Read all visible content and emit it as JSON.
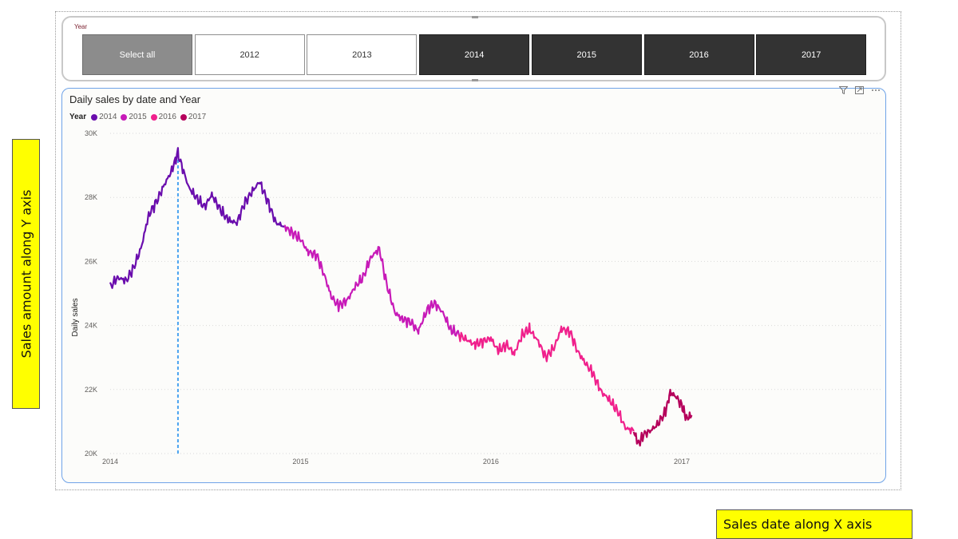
{
  "slicer": {
    "title": "Year",
    "buttons": [
      {
        "label": "Select all",
        "state": "all"
      },
      {
        "label": "2012",
        "state": "off"
      },
      {
        "label": "2013",
        "state": "off"
      },
      {
        "label": "2014",
        "state": "on"
      },
      {
        "label": "2015",
        "state": "on"
      },
      {
        "label": "2016",
        "state": "on"
      },
      {
        "label": "2017",
        "state": "on"
      }
    ]
  },
  "card_icons": [
    "filter-icon",
    "focus-mode-icon",
    "more-options-icon"
  ],
  "annotations": {
    "y_axis_note": "Sales amount along Y axis",
    "x_axis_note": "Sales date along X axis"
  },
  "chart_data": {
    "type": "line",
    "title": "Daily sales by date and Year",
    "xlabel": "",
    "ylabel": "Daily sales",
    "legend_title": "Year",
    "legend_position": "top-left",
    "x_domain": [
      "2014-01-01",
      "2017-05-01"
    ],
    "x_ticks": [
      {
        "date": "2014-01-01",
        "label": "2014"
      },
      {
        "date": "2015-01-01",
        "label": "2015"
      },
      {
        "date": "2016-01-01",
        "label": "2016"
      },
      {
        "date": "2017-01-01",
        "label": "2017"
      }
    ],
    "ylim": [
      20000,
      30000
    ],
    "y_ticks": [
      {
        "value": 20000,
        "label": "20K"
      },
      {
        "value": 22000,
        "label": "22K"
      },
      {
        "value": 24000,
        "label": "24K"
      },
      {
        "value": 26000,
        "label": "26K"
      },
      {
        "value": 28000,
        "label": "28K"
      },
      {
        "value": 30000,
        "label": "30K"
      }
    ],
    "grid": "horizontal dotted",
    "reference_line": {
      "date": "2014-05-11",
      "style": "dashed",
      "color": "#4aa3f0"
    },
    "series": [
      {
        "name": "2014",
        "color": "#6a0dad",
        "points": [
          [
            "2014-01-01",
            25200
          ],
          [
            "2014-01-15",
            25500
          ],
          [
            "2014-02-01",
            25400
          ],
          [
            "2014-02-15",
            25800
          ],
          [
            "2014-03-01",
            26400
          ],
          [
            "2014-03-15",
            27400
          ],
          [
            "2014-04-01",
            27900
          ],
          [
            "2014-04-15",
            28400
          ],
          [
            "2014-05-01",
            28900
          ],
          [
            "2014-05-11",
            29400
          ],
          [
            "2014-06-01",
            28300
          ],
          [
            "2014-06-15",
            28000
          ],
          [
            "2014-07-01",
            27700
          ],
          [
            "2014-07-15",
            28100
          ],
          [
            "2014-08-01",
            27600
          ],
          [
            "2014-08-15",
            27300
          ],
          [
            "2014-09-01",
            27200
          ],
          [
            "2014-09-15",
            27800
          ],
          [
            "2014-10-01",
            28200
          ],
          [
            "2014-10-15",
            28500
          ],
          [
            "2014-11-01",
            27800
          ],
          [
            "2014-11-15",
            27200
          ],
          [
            "2014-12-01",
            27100
          ]
        ]
      },
      {
        "name": "2015",
        "color": "#c71ab8",
        "points": [
          [
            "2014-12-01",
            27100
          ],
          [
            "2015-01-01",
            26700
          ],
          [
            "2015-01-15",
            26300
          ],
          [
            "2015-02-01",
            26200
          ],
          [
            "2015-02-15",
            25600
          ],
          [
            "2015-03-01",
            24900
          ],
          [
            "2015-03-15",
            24600
          ],
          [
            "2015-04-01",
            24800
          ],
          [
            "2015-04-15",
            25200
          ],
          [
            "2015-05-01",
            25500
          ],
          [
            "2015-05-15",
            26100
          ],
          [
            "2015-06-01",
            26400
          ],
          [
            "2015-06-15",
            25300
          ],
          [
            "2015-07-01",
            24400
          ],
          [
            "2015-07-15",
            24200
          ],
          [
            "2015-08-01",
            24100
          ],
          [
            "2015-08-15",
            23800
          ],
          [
            "2015-09-01",
            24500
          ],
          [
            "2015-09-15",
            24700
          ],
          [
            "2015-10-01",
            24400
          ],
          [
            "2015-10-15",
            23900
          ],
          [
            "2015-11-01",
            23700
          ]
        ]
      },
      {
        "name": "2016",
        "color": "#f0208c",
        "points": [
          [
            "2015-11-01",
            23700
          ],
          [
            "2015-12-01",
            23400
          ],
          [
            "2016-01-01",
            23600
          ],
          [
            "2016-01-15",
            23200
          ],
          [
            "2016-02-01",
            23400
          ],
          [
            "2016-02-15",
            23100
          ],
          [
            "2016-03-01",
            23700
          ],
          [
            "2016-03-15",
            23900
          ],
          [
            "2016-04-01",
            23500
          ],
          [
            "2016-04-15",
            23000
          ],
          [
            "2016-05-01",
            23300
          ],
          [
            "2016-05-15",
            23900
          ],
          [
            "2016-06-01",
            23800
          ],
          [
            "2016-06-15",
            23200
          ],
          [
            "2016-07-01",
            22800
          ],
          [
            "2016-07-15",
            22500
          ],
          [
            "2016-08-01",
            21900
          ],
          [
            "2016-08-15",
            21700
          ],
          [
            "2016-09-01",
            21300
          ],
          [
            "2016-09-15",
            20800
          ],
          [
            "2016-10-01",
            20700
          ]
        ]
      },
      {
        "name": "2017",
        "color": "#b5005b",
        "points": [
          [
            "2016-10-01",
            20700
          ],
          [
            "2016-10-10",
            20300
          ],
          [
            "2016-10-20",
            20600
          ],
          [
            "2016-11-01",
            20700
          ],
          [
            "2016-11-15",
            20900
          ],
          [
            "2016-12-01",
            21300
          ],
          [
            "2016-12-10",
            21900
          ],
          [
            "2016-12-20",
            21800
          ],
          [
            "2017-01-01",
            21500
          ],
          [
            "2017-01-10",
            21100
          ],
          [
            "2017-01-20",
            21200
          ]
        ]
      }
    ]
  }
}
